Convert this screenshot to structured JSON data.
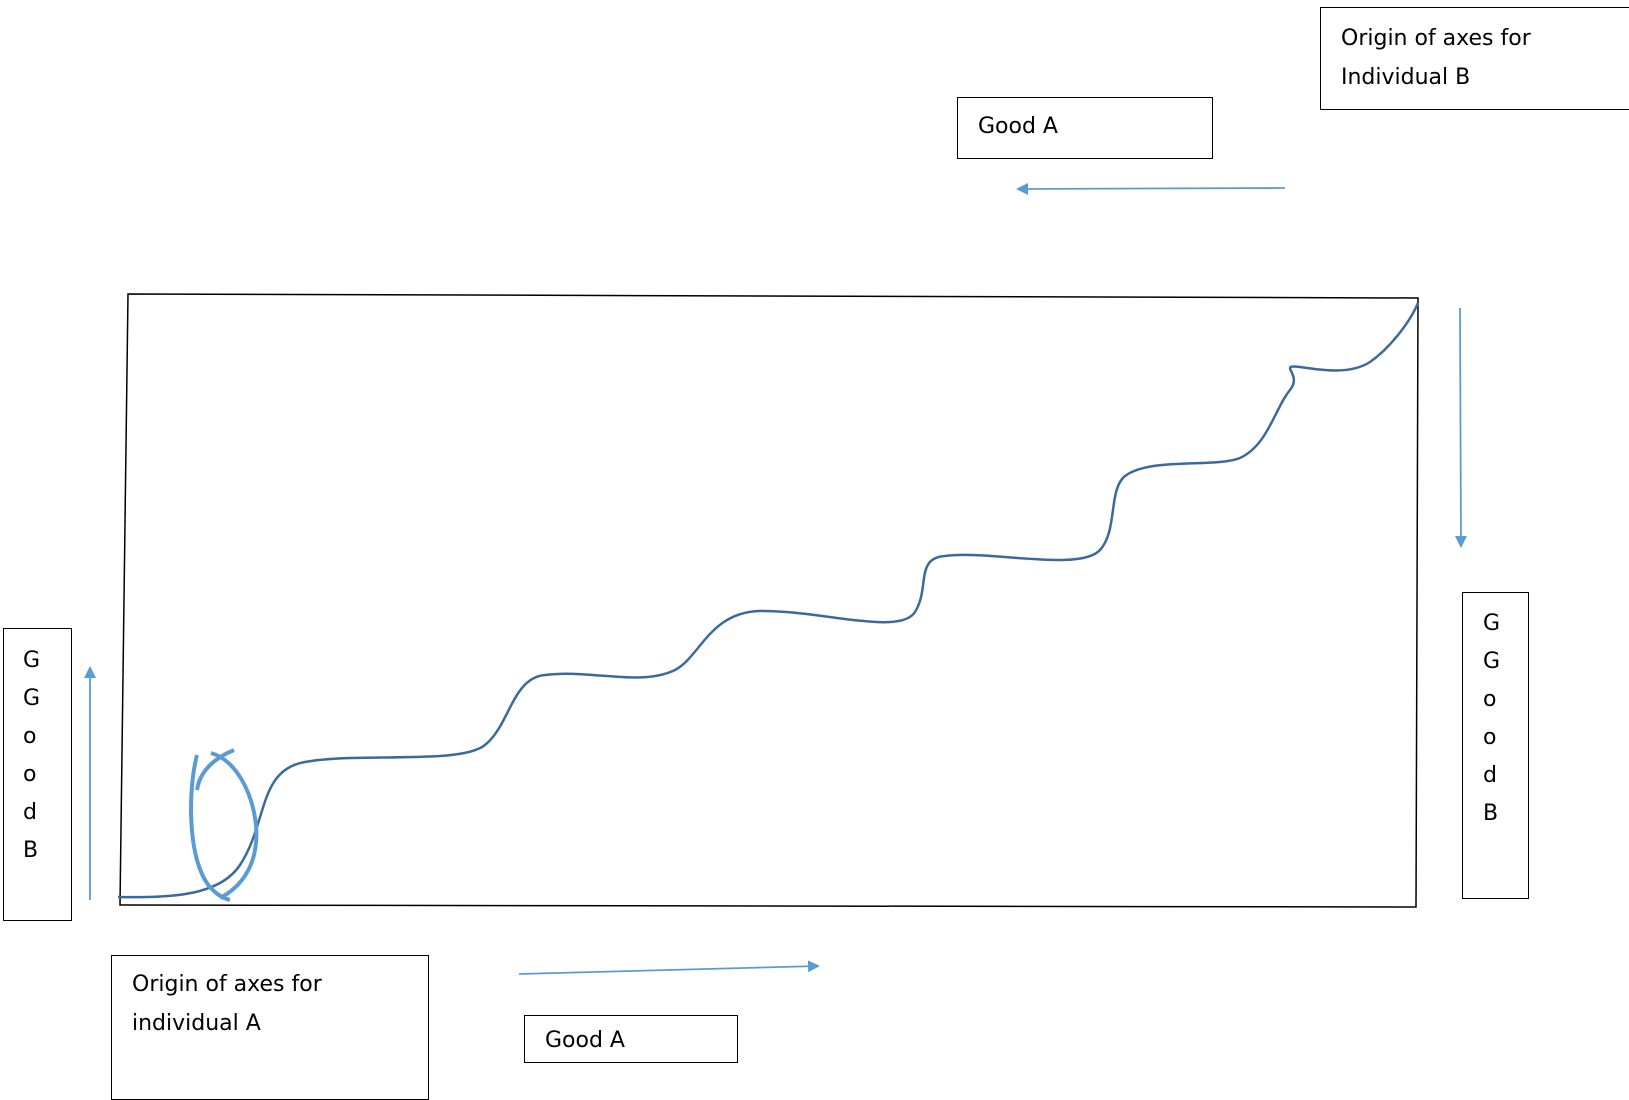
{
  "labels": {
    "origin_b": "Origin of axes for\nIndividual B",
    "top_good_a": "Good A",
    "origin_a": "Origin of axes for\nindividual A",
    "bottom_good_a": "Good A",
    "left_good_b": [
      "G",
      "G",
      "o",
      "o",
      "d",
      "B"
    ],
    "right_good_b": [
      "G",
      "G",
      "o",
      "o",
      "d",
      "B"
    ]
  },
  "colors": {
    "box_stroke": "#000000",
    "curve": "#3a6a9c",
    "arrow": "#5b9bd5",
    "highlight_ellipse": "#5b9bd5"
  }
}
